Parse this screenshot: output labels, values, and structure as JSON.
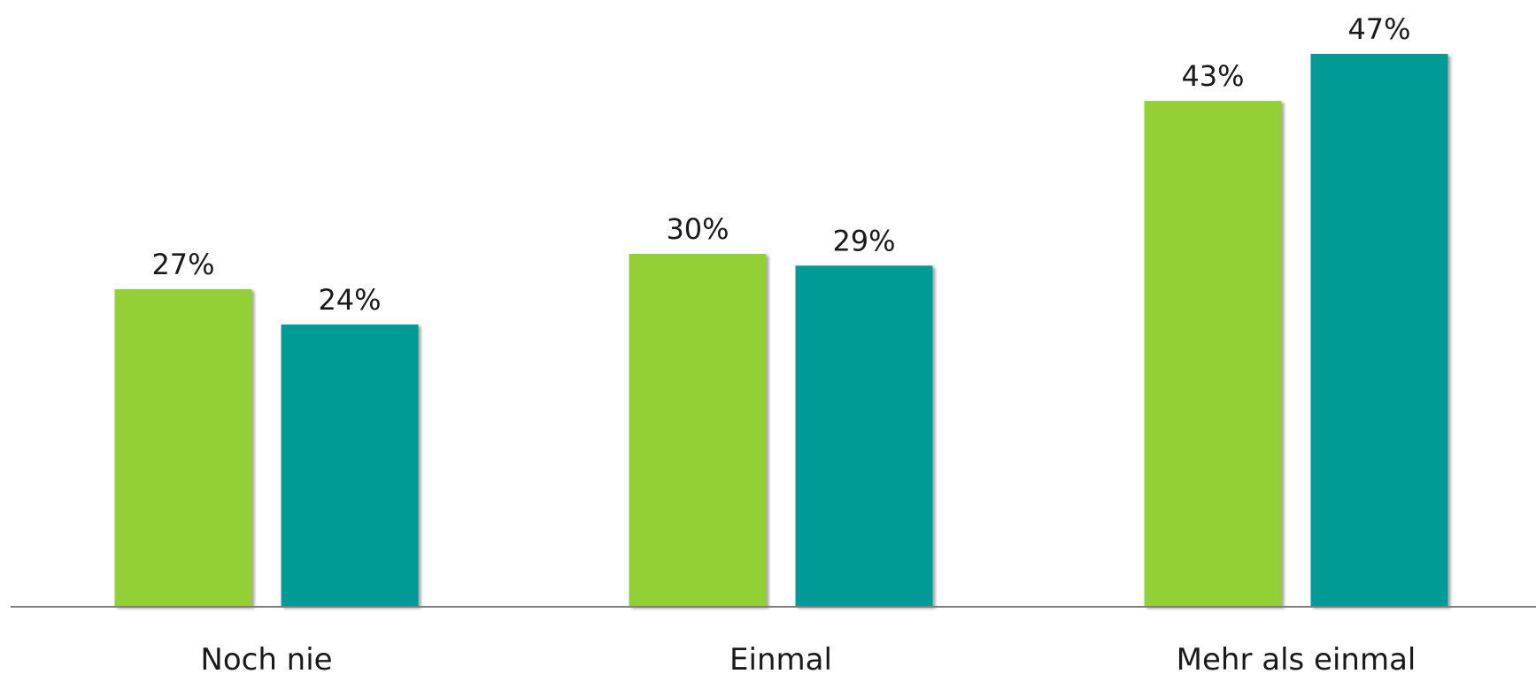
{
  "chart_data": {
    "type": "bar",
    "title": "",
    "xlabel": "",
    "ylabel": "",
    "categories": [
      "Noch nie",
      "Einmal",
      "Mehr als einmal"
    ],
    "series": [
      {
        "values": [
          27,
          30,
          43
        ],
        "labels": [
          "27%",
          "30%",
          "43%"
        ],
        "color": "#92d036"
      },
      {
        "values": [
          24,
          29,
          47
        ],
        "labels": [
          "24%",
          "29%",
          "47%"
        ],
        "color": "#039a97"
      }
    ],
    "ylim": [
      0,
      50
    ],
    "unit": "%",
    "grid": false,
    "legend": "none",
    "axis_color": "#7f7f7f"
  }
}
